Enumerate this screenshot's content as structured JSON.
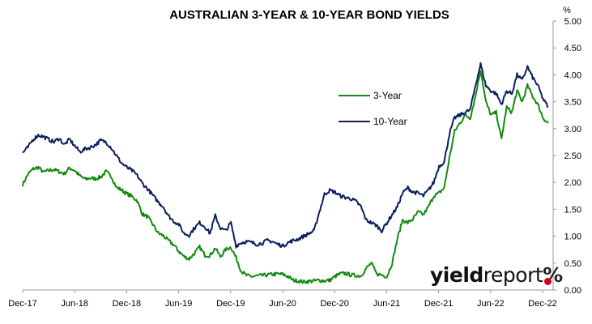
{
  "chart_data": {
    "type": "line",
    "title": "AUSTRALIAN 3-YEAR & 10-YEAR BOND YIELDS",
    "y_unit_label": "%",
    "ylim": [
      0,
      5
    ],
    "y_ticks": [
      "0.00",
      "0.50",
      "1.00",
      "1.50",
      "2.00",
      "2.50",
      "3.00",
      "3.50",
      "4.00",
      "4.50",
      "5.00"
    ],
    "x_ticks": [
      "Dec-17",
      "Jun-18",
      "Dec-18",
      "Jun-19",
      "Dec-19",
      "Jun-20",
      "Dec-20",
      "Jun-21",
      "Dec-21",
      "Jun-22",
      "Dec-22"
    ],
    "grid": false,
    "legend_position": "upper-right",
    "series": [
      {
        "name": "3-Year",
        "color": "#128a12",
        "values": [
          1.96,
          2.15,
          2.25,
          2.28,
          2.19,
          2.22,
          2.24,
          2.2,
          2.16,
          2.27,
          2.22,
          2.12,
          2.06,
          2.08,
          2.07,
          2.1,
          2.2,
          2.12,
          1.91,
          1.86,
          1.79,
          1.74,
          1.66,
          1.41,
          1.36,
          1.22,
          1.06,
          1.01,
          0.92,
          0.84,
          0.72,
          0.62,
          0.58,
          0.68,
          0.8,
          0.65,
          0.64,
          0.78,
          0.62,
          0.75,
          0.8,
          0.6,
          0.35,
          0.27,
          0.25,
          0.26,
          0.27,
          0.28,
          0.29,
          0.3,
          0.29,
          0.25,
          0.18,
          0.17,
          0.15,
          0.16,
          0.17,
          0.18,
          0.17,
          0.18,
          0.25,
          0.3,
          0.31,
          0.28,
          0.27,
          0.26,
          0.4,
          0.5,
          0.3,
          0.28,
          0.25,
          0.5,
          0.95,
          1.3,
          1.25,
          1.32,
          1.45,
          1.4,
          1.55,
          1.75,
          1.8,
          1.9,
          2.45,
          2.95,
          3.1,
          3.25,
          3.2,
          3.6,
          4.1,
          3.5,
          3.25,
          3.3,
          2.8,
          3.4,
          3.3,
          3.7,
          3.5,
          3.8,
          3.6,
          3.45,
          3.2,
          3.1
        ]
      },
      {
        "name": "10-Year",
        "color": "#0c1f5c",
        "values": [
          2.55,
          2.65,
          2.8,
          2.88,
          2.85,
          2.8,
          2.75,
          2.82,
          2.7,
          2.8,
          2.68,
          2.57,
          2.62,
          2.65,
          2.7,
          2.78,
          2.75,
          2.65,
          2.5,
          2.36,
          2.28,
          2.22,
          2.13,
          1.98,
          1.88,
          1.76,
          1.64,
          1.55,
          1.38,
          1.28,
          1.22,
          1.05,
          1.02,
          1.15,
          1.25,
          1.18,
          1.05,
          1.38,
          1.15,
          1.1,
          1.25,
          0.82,
          0.88,
          0.9,
          0.88,
          0.85,
          0.87,
          0.92,
          0.9,
          0.85,
          0.82,
          0.88,
          0.92,
          0.95,
          1.0,
          1.05,
          1.1,
          1.45,
          1.78,
          1.85,
          1.82,
          1.75,
          1.72,
          1.7,
          1.65,
          1.55,
          1.3,
          1.25,
          1.2,
          1.1,
          1.25,
          1.4,
          1.55,
          1.8,
          1.9,
          1.82,
          1.8,
          1.75,
          1.86,
          2.0,
          2.3,
          2.38,
          2.9,
          3.2,
          3.25,
          3.3,
          3.35,
          3.8,
          4.2,
          3.8,
          3.7,
          3.65,
          3.45,
          3.7,
          3.65,
          4.0,
          3.9,
          4.15,
          3.95,
          3.8,
          3.55,
          3.4
        ]
      }
    ]
  },
  "branding": {
    "part1": "yield",
    "part2": "report",
    "part3": "%"
  }
}
